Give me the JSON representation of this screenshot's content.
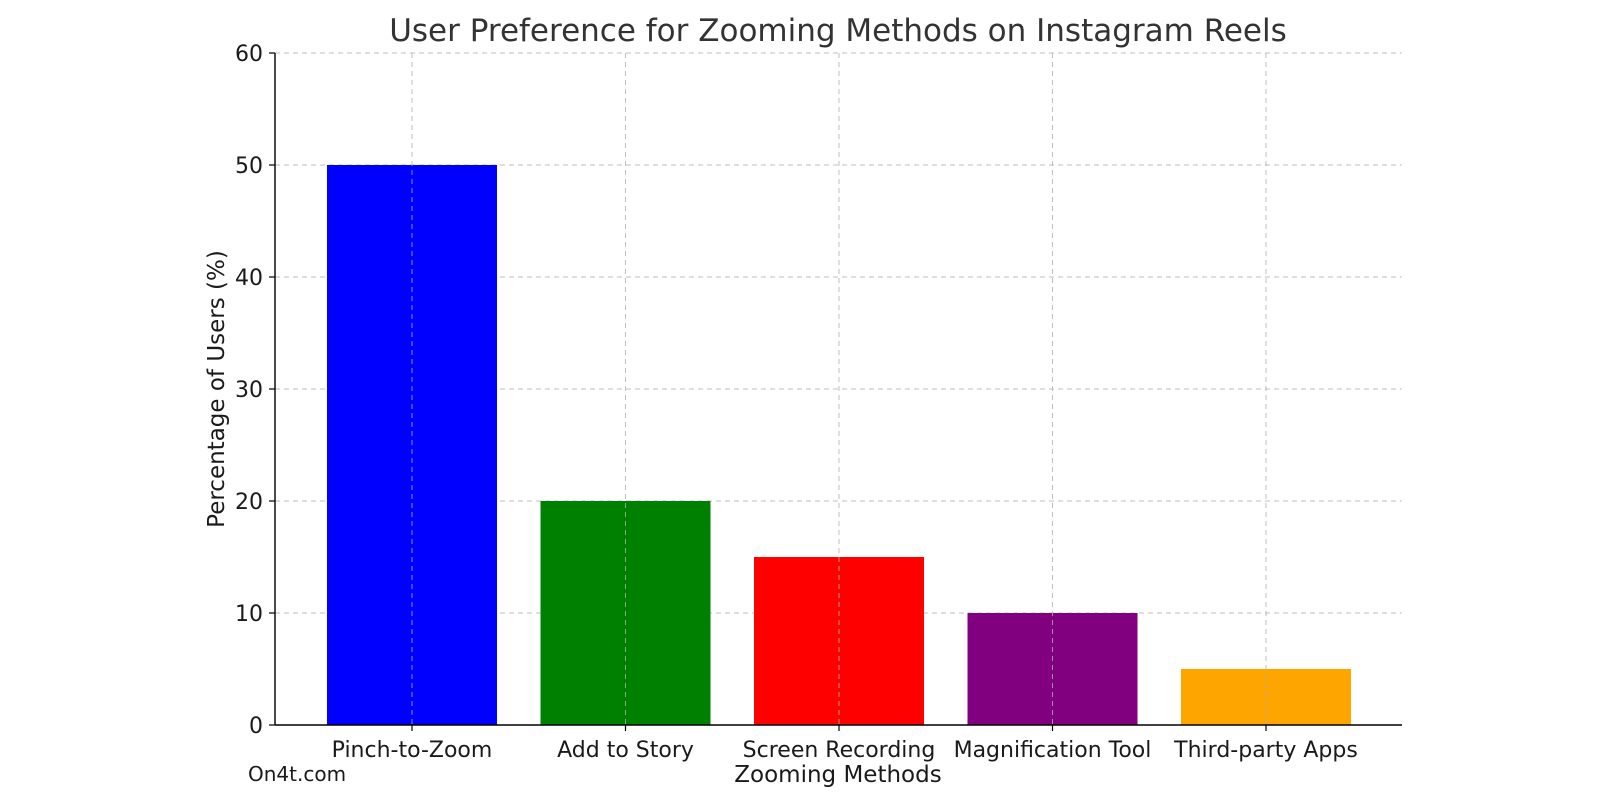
{
  "watermark": "On4t.com",
  "chart_data": {
    "type": "bar",
    "title": "User Preference for Zooming Methods on Instagram Reels",
    "xlabel": "Zooming Methods",
    "ylabel": "Percentage of Users (%)",
    "categories": [
      "Pinch-to-Zoom",
      "Add to Story",
      "Screen Recording",
      "Magnification Tool",
      "Third-party Apps"
    ],
    "values": [
      50,
      20,
      15,
      10,
      5
    ],
    "colors": [
      "#0000ff",
      "#008000",
      "#ff0000",
      "#800080",
      "#ffa500"
    ],
    "ylim": [
      0,
      60
    ],
    "yticks": [
      0,
      10,
      20,
      30,
      40,
      50,
      60
    ],
    "grid": true,
    "legend": "none"
  }
}
